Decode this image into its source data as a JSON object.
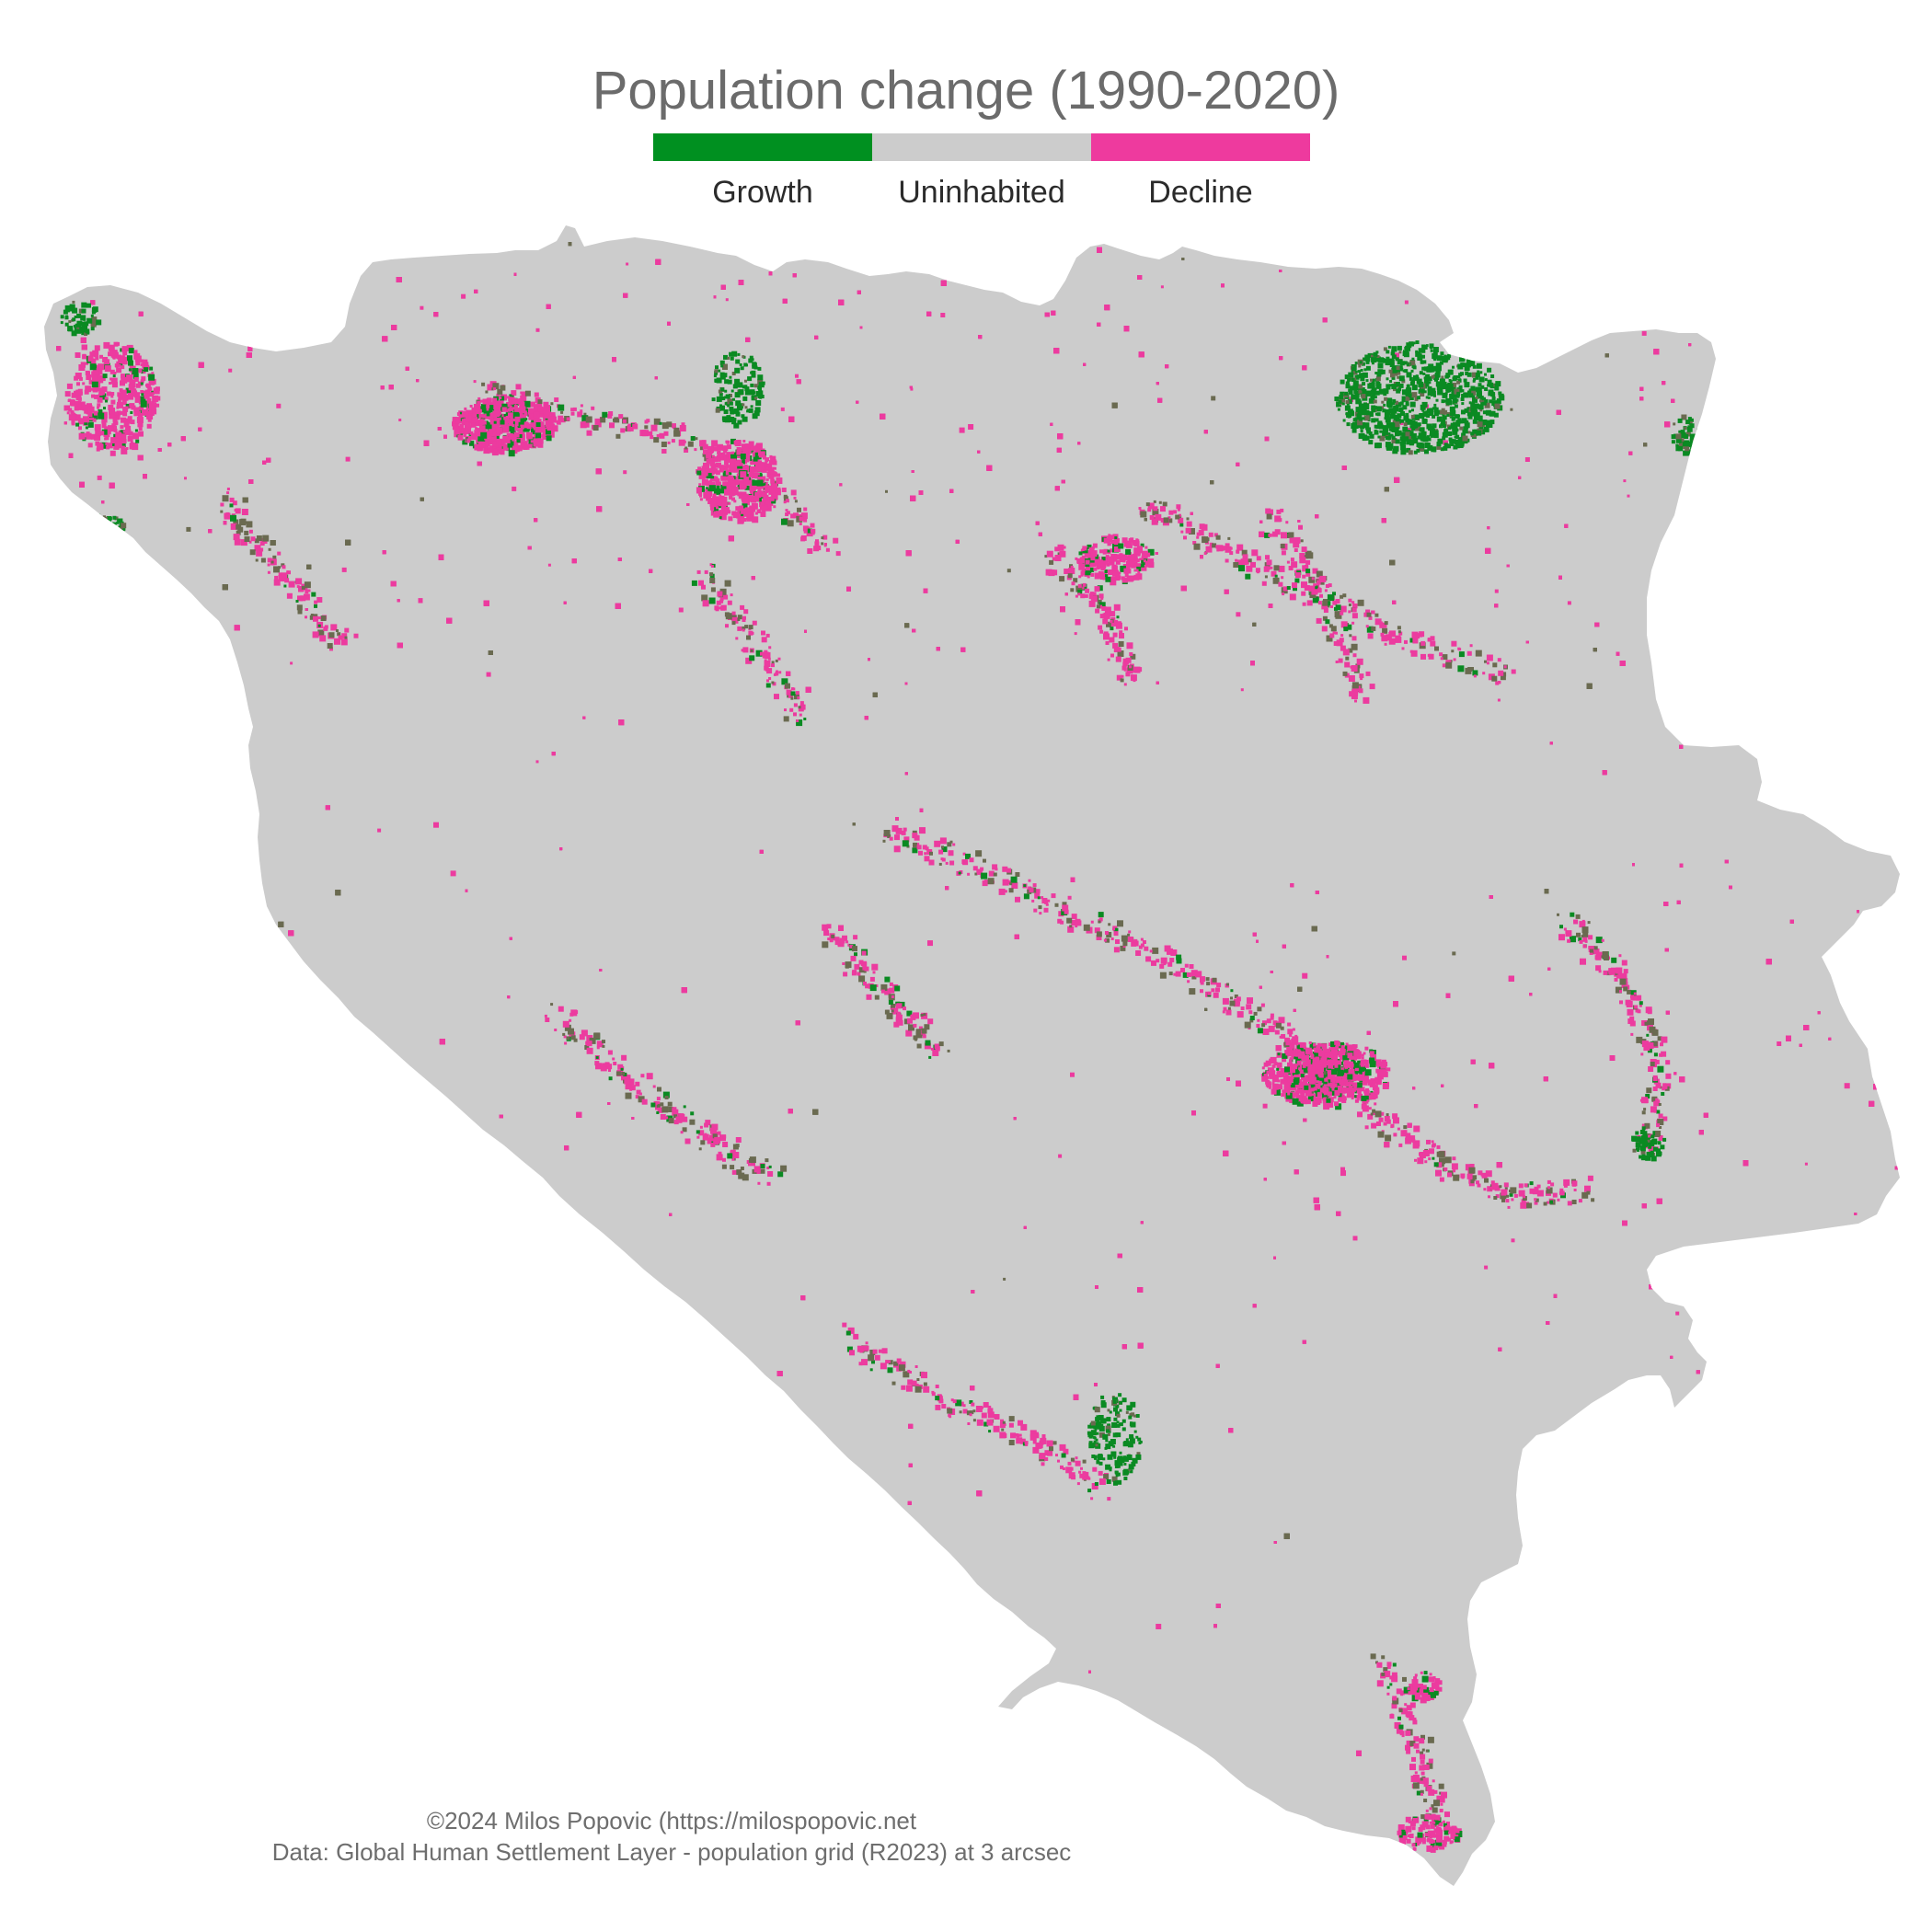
{
  "title": "Population change (1990-2020)",
  "legend": {
    "items": [
      {
        "label": "Growth",
        "color": "#009020"
      },
      {
        "label": "Uninhabited",
        "color": "#cccccc"
      },
      {
        "label": "Decline",
        "color": "#ee3a9e"
      }
    ]
  },
  "map": {
    "region_color": "#cccccc",
    "growth_color": "#0a8a22",
    "decline_color": "#ec3b9f",
    "mixed_color": "#6a6a50"
  },
  "caption": {
    "line1": "©2024 Milos Popovic (https://milospopovic.net",
    "line2": "Data: Global Human Settlement Layer - population grid (R2023) at 3 arcsec"
  }
}
